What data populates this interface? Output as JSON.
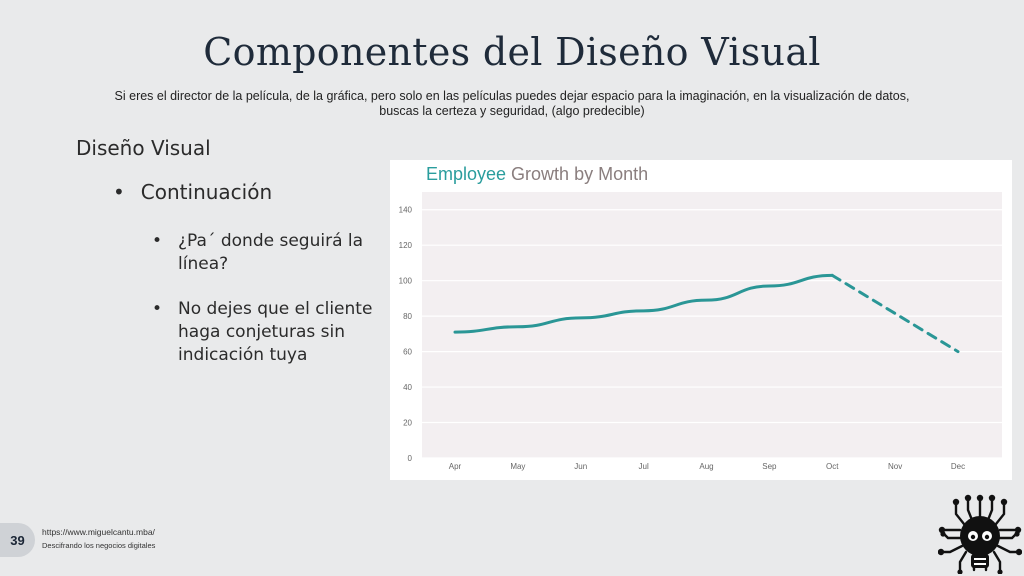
{
  "slide": {
    "title": "Componentes del Diseño Visual",
    "subtitle_line1": "Si eres el director de la película, de la gráfica, pero solo en las películas puedes dejar espacio para la imaginación, en la visualización de datos,",
    "subtitle_line2": "buscas la certeza y seguridad, (algo predecible)",
    "section": "Diseño Visual",
    "bullet": "Continuación",
    "sub_bullets": [
      {
        "line1": "¿Pa´ donde seguirá la",
        "line2": "línea?"
      },
      {
        "line1": "No dejes que el cliente",
        "line2": "haga conjeturas sin",
        "line3": "indicación tuya"
      }
    ],
    "bullet_char": "•"
  },
  "footer": {
    "page_number": "39",
    "url": "https://www.miguelcantu.mba/",
    "tagline": "Descifrando los negocios digitales"
  },
  "chart_data": {
    "type": "line",
    "title_part1": "Employee",
    "title_part2": " Growth by Month",
    "categories": [
      "Apr",
      "May",
      "Jun",
      "Jul",
      "Aug",
      "Sep",
      "Oct",
      "Nov",
      "Dec"
    ],
    "series": [
      {
        "values": [
          71,
          74,
          79,
          83,
          89,
          97,
          103,
          null,
          null
        ],
        "style": "solid"
      },
      {
        "values": [
          null,
          null,
          null,
          null,
          null,
          null,
          103,
          null,
          60
        ],
        "style": "dashed"
      }
    ],
    "yticks": [
      "0",
      "20",
      "40",
      "60",
      "80",
      "100",
      "120",
      "140"
    ],
    "ylim": [
      0,
      150
    ],
    "grid": true,
    "colors": {
      "line": "#2a9696",
      "plot_bg": "#f3eff1",
      "grid": "#ffffff",
      "title_accent": "#2a9d9d",
      "title_rest": "#8a7e7e"
    }
  }
}
